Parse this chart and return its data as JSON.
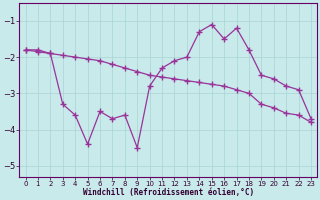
{
  "background_color": "#c8eaea",
  "grid_color": "#aad4d4",
  "line_color": "#993399",
  "xlabel": "Windchill (Refroidissement éolien,°C)",
  "xlim": [
    -0.5,
    23.5
  ],
  "ylim": [
    -5.3,
    -0.5
  ],
  "yticks": [
    -5,
    -4,
    -3,
    -2,
    -1
  ],
  "xticks": [
    0,
    1,
    2,
    3,
    4,
    5,
    6,
    7,
    8,
    9,
    10,
    11,
    12,
    13,
    14,
    15,
    16,
    17,
    18,
    19,
    20,
    21,
    22,
    23
  ],
  "s1_x": [
    0,
    1,
    2,
    3,
    4,
    5,
    6,
    7,
    8,
    9,
    10,
    11,
    12,
    13,
    14,
    15,
    16,
    17,
    18,
    19,
    20,
    21,
    22,
    23
  ],
  "s1_y": [
    -1.8,
    -1.8,
    -1.9,
    -3.3,
    -3.6,
    -4.4,
    -3.5,
    -3.7,
    -3.6,
    -4.5,
    -2.8,
    -2.3,
    -2.1,
    -2.0,
    -1.3,
    -1.1,
    -1.5,
    -1.2,
    -1.8,
    -2.5,
    -2.6,
    -2.8,
    -2.9,
    -3.7
  ],
  "s2_x": [
    0,
    1,
    2,
    3,
    4,
    5,
    6,
    7,
    8,
    9,
    10,
    11,
    12,
    13,
    14,
    15,
    16,
    17,
    18,
    19,
    20,
    21,
    22,
    23
  ],
  "s2_y": [
    -1.8,
    -1.85,
    -1.9,
    -1.95,
    -2.0,
    -2.05,
    -2.1,
    -2.2,
    -2.3,
    -2.4,
    -2.5,
    -2.55,
    -2.6,
    -2.65,
    -2.7,
    -2.75,
    -2.8,
    -2.9,
    -3.0,
    -3.3,
    -3.4,
    -3.55,
    -3.6,
    -3.8
  ]
}
